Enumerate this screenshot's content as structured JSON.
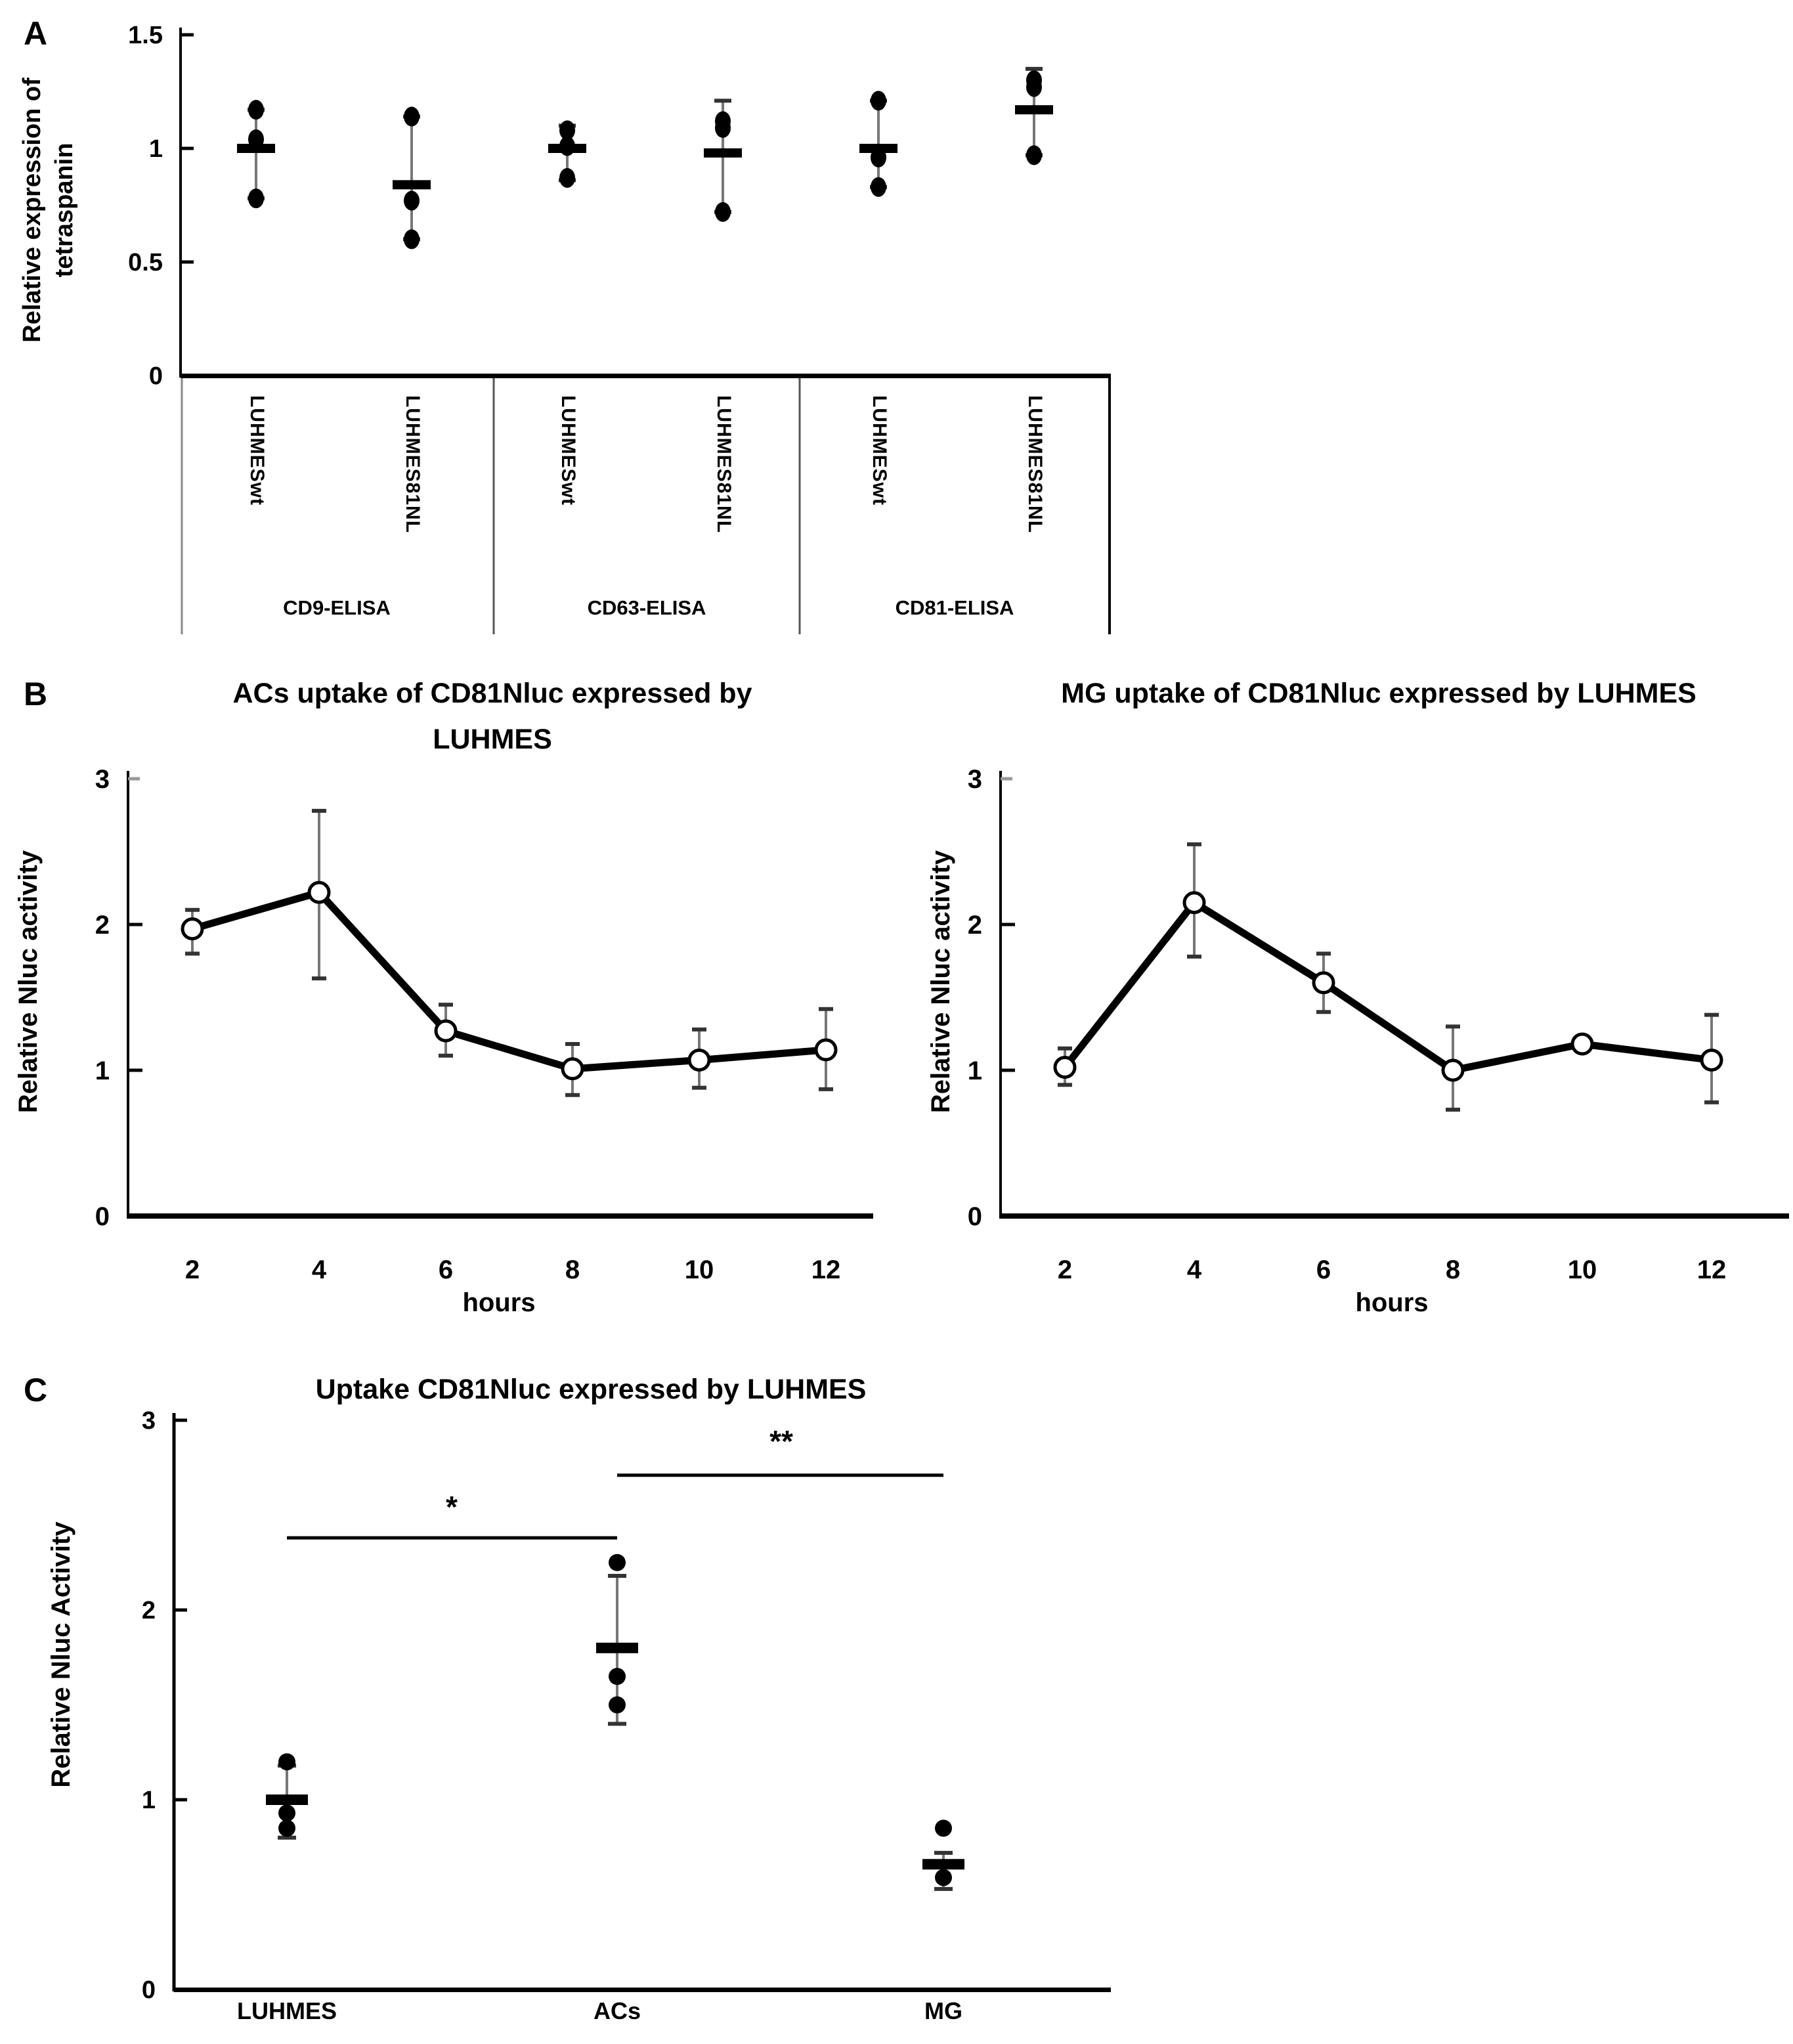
{
  "figure": {
    "background": "#ffffff",
    "text_color": "#000000",
    "accent_color": "#000000",
    "panels": {
      "a": {
        "label": "A"
      },
      "b": {
        "label": "B"
      },
      "c": {
        "label": "C"
      }
    }
  },
  "chart_data": [
    {
      "id": "panel-a",
      "type": "scatter",
      "ylabel": "Relative expression of tetraspanin",
      "ylim": [
        0,
        1.5
      ],
      "yticks": [
        1.5,
        1,
        0.5,
        0
      ],
      "ytick_labels": [
        "1.5",
        "1",
        "0.5",
        "0"
      ],
      "grid": false,
      "sections": [
        "CD9-ELISA",
        "CD63-ELISA",
        "CD81-ELISA"
      ],
      "groups": [
        {
          "cell": "LUHMESwt",
          "section": "CD9-ELISA",
          "points": [
            1.17,
            1.04,
            0.78
          ],
          "mean": 1.0,
          "whisker": [
            0.78,
            1.17
          ]
        },
        {
          "cell": "LUHMES81NL",
          "section": "CD9-ELISA",
          "points": [
            1.14,
            0.77,
            0.6
          ],
          "mean": 0.84,
          "whisker": [
            0.6,
            1.14
          ]
        },
        {
          "cell": "LUHMESwt",
          "section": "CD63-ELISA",
          "points": [
            1.08,
            1.01,
            0.87
          ],
          "mean": 1.0,
          "whisker": [
            0.86,
            1.1
          ]
        },
        {
          "cell": "LUHMES81NL",
          "section": "CD63-ELISA",
          "points": [
            1.12,
            1.09,
            0.72
          ],
          "mean": 0.98,
          "whisker": [
            0.72,
            1.21
          ]
        },
        {
          "cell": "LUHMESwt",
          "section": "CD81-ELISA",
          "points": [
            1.21,
            0.96,
            0.83
          ],
          "mean": 1.0,
          "whisker": [
            0.83,
            1.21
          ]
        },
        {
          "cell": "LUHMES81NL",
          "section": "CD81-ELISA",
          "points": [
            1.3,
            1.27,
            0.97
          ],
          "mean": 1.17,
          "whisker": [
            0.97,
            1.35
          ]
        }
      ]
    },
    {
      "id": "panel-b-acs",
      "type": "line",
      "title": "ACs uptake of CD81Nluc expressed by LUHMES",
      "xlabel": "hours",
      "ylabel": "Relative Nluc activity",
      "marker": "open-circle",
      "grid": false,
      "ylim": [
        0,
        3
      ],
      "yticks": [
        3,
        2,
        1,
        0
      ],
      "x": [
        2,
        4,
        6,
        8,
        10,
        12
      ],
      "y": [
        1.97,
        2.22,
        1.27,
        1.01,
        1.07,
        1.14
      ],
      "err_lo": [
        1.8,
        1.63,
        1.1,
        0.83,
        0.88,
        0.87
      ],
      "err_hi": [
        2.1,
        2.78,
        1.45,
        1.18,
        1.28,
        1.42
      ]
    },
    {
      "id": "panel-b-mg",
      "type": "line",
      "title": "MG uptake of CD81Nluc expressed by LUHMES",
      "xlabel": "hours",
      "ylabel": "Relative Nluc activity",
      "marker": "open-circle",
      "grid": false,
      "ylim": [
        0,
        3
      ],
      "yticks": [
        3,
        2,
        1,
        0
      ],
      "x": [
        2,
        4,
        6,
        8,
        10,
        12
      ],
      "y": [
        1.02,
        2.15,
        1.6,
        1.0,
        1.18,
        1.07
      ],
      "err_lo": [
        0.9,
        1.78,
        1.4,
        0.73,
        null,
        0.78
      ],
      "err_hi": [
        1.15,
        2.55,
        1.8,
        1.3,
        null,
        1.38
      ]
    },
    {
      "id": "panel-c",
      "type": "scatter",
      "title": "Uptake CD81Nluc expressed by LUHMES",
      "ylabel": "Relative Nluc Activity",
      "grid": false,
      "ylim": [
        0,
        3
      ],
      "yticks": [
        3,
        2,
        1,
        0
      ],
      "ytick_labels": [
        "3",
        "2",
        "1",
        "0"
      ],
      "categories": [
        "LUHMES",
        "ACs",
        "MG"
      ],
      "groups": [
        {
          "category": "LUHMES",
          "points": [
            1.2,
            0.93,
            0.85
          ],
          "mean": 1.0,
          "whisker": [
            0.8,
            1.18
          ]
        },
        {
          "category": "ACs",
          "points": [
            2.25,
            1.65,
            1.5
          ],
          "mean": 1.8,
          "whisker": [
            1.4,
            2.18
          ]
        },
        {
          "category": "MG",
          "points": [
            0.85,
            0.59
          ],
          "mean": 0.66,
          "whisker": [
            0.53,
            0.72
          ]
        }
      ],
      "significance": [
        {
          "from": "LUHMES",
          "to": "ACs",
          "label": "*",
          "bar_y": 2.38
        },
        {
          "from": "ACs",
          "to": "MG",
          "label": "**",
          "bar_y": 2.71
        }
      ]
    }
  ]
}
